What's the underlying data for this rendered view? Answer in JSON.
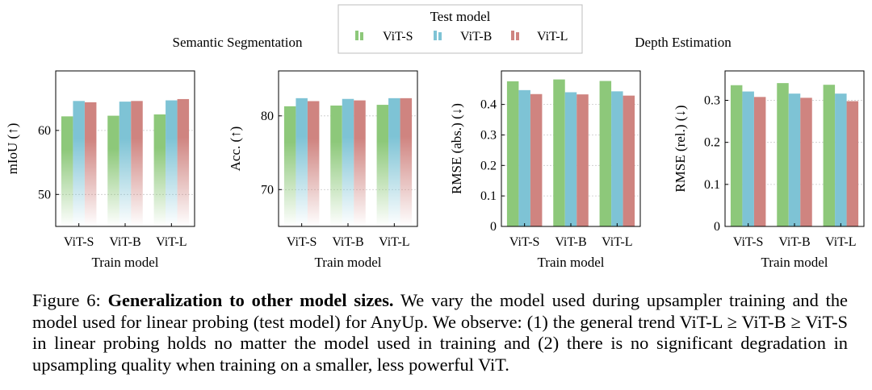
{
  "legend": {
    "title": "Test model",
    "entries": [
      "ViT-S",
      "ViT-B",
      "ViT-L"
    ]
  },
  "colors": {
    "vits": "#8dc87a",
    "vitb": "#7ec3d5",
    "vitl": "#cf8480"
  },
  "groups": {
    "semantic": "Semantic Segmentation",
    "depth": "Depth Estimation"
  },
  "chart_data": [
    {
      "type": "bar",
      "categories": [
        "ViT-S",
        "ViT-B",
        "ViT-L"
      ],
      "series": [
        {
          "name": "ViT-S",
          "values": [
            62.2,
            62.3,
            62.5
          ]
        },
        {
          "name": "ViT-B",
          "values": [
            64.6,
            64.5,
            64.7
          ]
        },
        {
          "name": "ViT-L",
          "values": [
            64.4,
            64.6,
            64.9
          ]
        }
      ],
      "title": "",
      "xlabel": "Train model",
      "ylabel": "mIoU (↑)",
      "ylim": [
        45,
        69.3
      ],
      "yticks": [
        50,
        60
      ],
      "fade": true
    },
    {
      "type": "bar",
      "categories": [
        "ViT-S",
        "ViT-B",
        "ViT-L"
      ],
      "series": [
        {
          "name": "ViT-S",
          "values": [
            81.3,
            81.4,
            81.5
          ]
        },
        {
          "name": "ViT-B",
          "values": [
            82.4,
            82.3,
            82.4
          ]
        },
        {
          "name": "ViT-L",
          "values": [
            82.0,
            82.1,
            82.4
          ]
        }
      ],
      "title": "",
      "xlabel": "Train model",
      "ylabel": "Acc. (↑)",
      "ylim": [
        65,
        86.1
      ],
      "yticks": [
        70,
        80
      ],
      "fade": true
    },
    {
      "type": "bar",
      "categories": [
        "ViT-S",
        "ViT-B",
        "ViT-L"
      ],
      "series": [
        {
          "name": "ViT-S",
          "values": [
            0.476,
            0.482,
            0.477
          ]
        },
        {
          "name": "ViT-B",
          "values": [
            0.447,
            0.44,
            0.443
          ]
        },
        {
          "name": "ViT-L",
          "values": [
            0.434,
            0.433,
            0.429
          ]
        }
      ],
      "title": "",
      "xlabel": "Train model",
      "ylabel": "RMSE (abs.) (↓)",
      "ylim": [
        0,
        0.51
      ],
      "yticks": [
        0,
        0.1,
        0.2,
        0.3,
        0.4
      ],
      "fade": false
    },
    {
      "type": "bar",
      "categories": [
        "ViT-S",
        "ViT-B",
        "ViT-L"
      ],
      "series": [
        {
          "name": "ViT-S",
          "values": [
            0.336,
            0.341,
            0.337
          ]
        },
        {
          "name": "ViT-B",
          "values": [
            0.321,
            0.316,
            0.316
          ]
        },
        {
          "name": "ViT-L",
          "values": [
            0.308,
            0.306,
            0.298
          ]
        }
      ],
      "title": "",
      "xlabel": "Train model",
      "ylabel": "RMSE (rel.) (↓)",
      "ylim": [
        0,
        0.37
      ],
      "yticks": [
        0,
        0.1,
        0.2,
        0.3
      ],
      "fade": false
    }
  ],
  "caption": {
    "label": "Figure 6:",
    "title": "Generalization to other model sizes.",
    "body": "We vary the model used during upsampler training and the model used for linear probing (test model) for AnyUp. We observe: (1) the general trend ViT-L ≥ ViT-B ≥ ViT-S in linear probing holds no matter the model used in training and (2) there is no significant degradation in upsampling quality when training on a smaller, less powerful ViT."
  }
}
